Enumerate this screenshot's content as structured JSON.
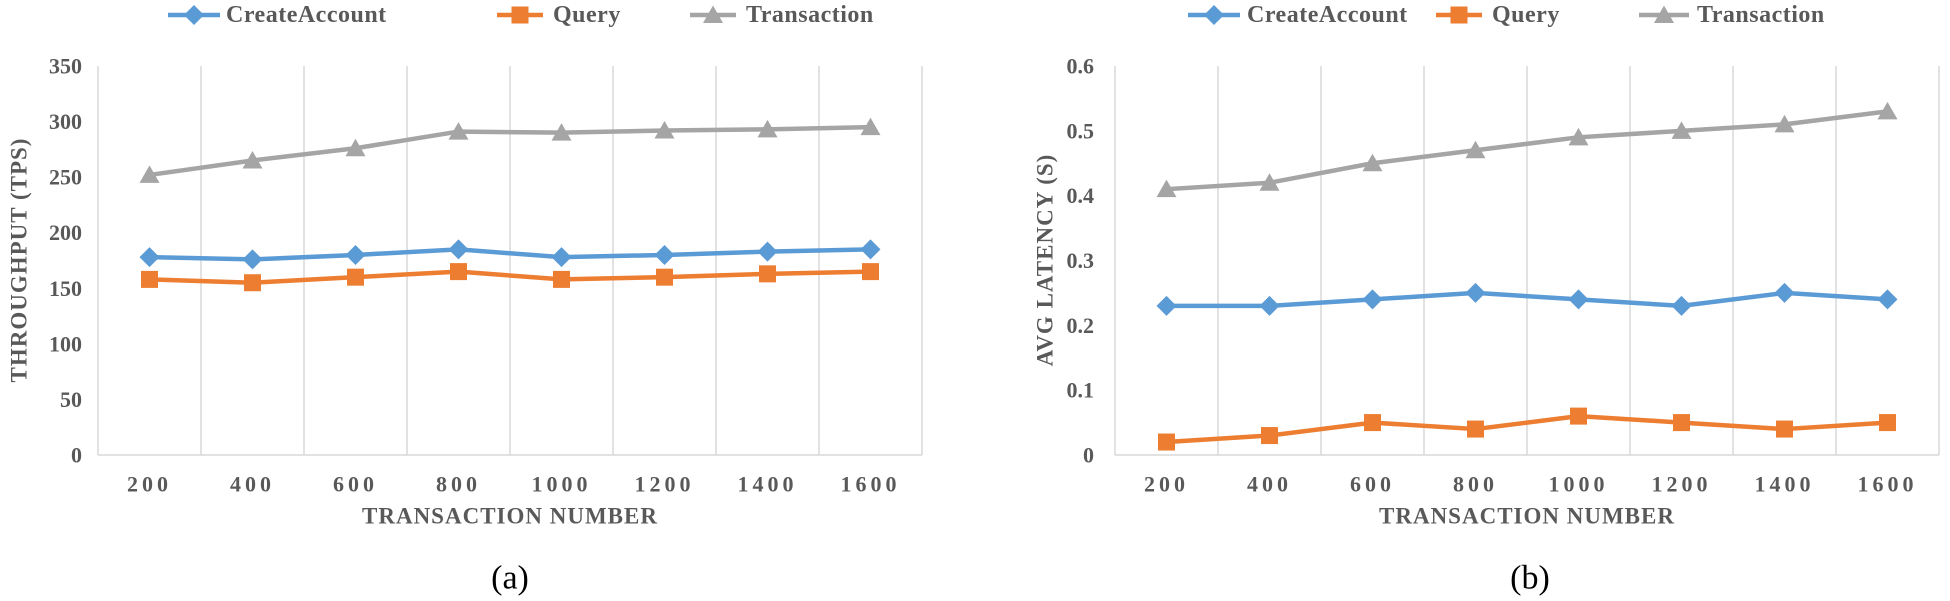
{
  "chart_data": [
    {
      "type": "line",
      "panel_label": "(a)",
      "xlabel": "TRANSACTION NUMBER",
      "ylabel": "THROUGHPUT (TPS)",
      "categories": [
        "200",
        "400",
        "600",
        "800",
        "1000",
        "1200",
        "1400",
        "1600"
      ],
      "ylim": [
        0,
        350
      ],
      "yticks": [
        0,
        50,
        100,
        150,
        200,
        250,
        300,
        350
      ],
      "grid": "vertical",
      "legend": "top",
      "series": [
        {
          "name": "CreateAccount",
          "color": "#5B9BD5",
          "marker": "diamond",
          "values": [
            178,
            176,
            180,
            185,
            178,
            180,
            183,
            185
          ]
        },
        {
          "name": "Query",
          "color": "#ED7D31",
          "marker": "square",
          "values": [
            158,
            155,
            160,
            165,
            158,
            160,
            163,
            165
          ]
        },
        {
          "name": "Transaction",
          "color": "#A5A5A5",
          "marker": "triangle",
          "values": [
            252,
            265,
            276,
            291,
            290,
            292,
            293,
            295
          ]
        }
      ]
    },
    {
      "type": "line",
      "panel_label": "(b)",
      "xlabel": "TRANSACTION NUMBER",
      "ylabel": "AVG LATENCY (S)",
      "categories": [
        "200",
        "400",
        "600",
        "800",
        "1000",
        "1200",
        "1400",
        "1600"
      ],
      "ylim": [
        0,
        0.6
      ],
      "yticks": [
        0,
        0.1,
        0.2,
        0.3,
        0.4,
        0.5,
        0.6
      ],
      "grid": "vertical",
      "legend": "top",
      "series": [
        {
          "name": "CreateAccount",
          "color": "#5B9BD5",
          "marker": "diamond",
          "values": [
            0.23,
            0.23,
            0.24,
            0.25,
            0.24,
            0.23,
            0.25,
            0.24
          ]
        },
        {
          "name": "Query",
          "color": "#ED7D31",
          "marker": "square",
          "values": [
            0.02,
            0.03,
            0.05,
            0.04,
            0.06,
            0.05,
            0.04,
            0.05
          ]
        },
        {
          "name": "Transaction",
          "color": "#A5A5A5",
          "marker": "triangle",
          "values": [
            0.41,
            0.42,
            0.45,
            0.47,
            0.49,
            0.5,
            0.51,
            0.53
          ]
        }
      ]
    }
  ]
}
